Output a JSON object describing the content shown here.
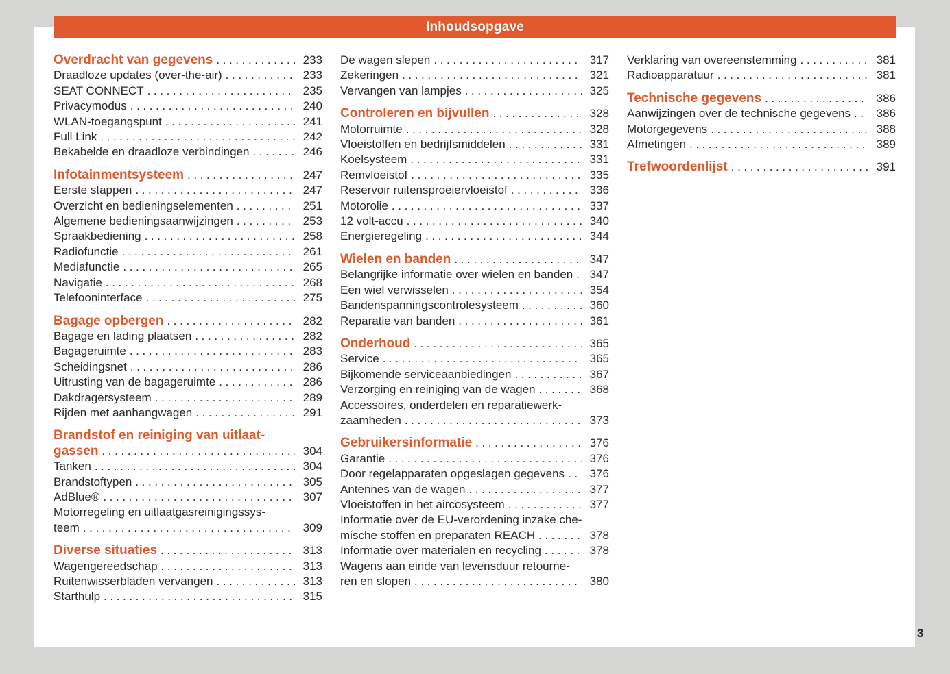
{
  "header": {
    "title": "Inhoudsopgave"
  },
  "page_number": "3",
  "colors": {
    "accent": "#e05a2e",
    "page_background": "#ffffff",
    "canvas_background": "#d5d5d3",
    "text": "#2b2b2b"
  },
  "columns": [
    {
      "blocks": [
        {
          "heading": {
            "lines": [
              "Overdracht van gegevens"
            ],
            "page": "233"
          },
          "items": [
            {
              "lines": [
                "Draadloze updates (over-the-air)"
              ],
              "page": "233"
            },
            {
              "lines": [
                "SEAT CONNECT"
              ],
              "page": "235"
            },
            {
              "lines": [
                "Privacymodus"
              ],
              "page": "240"
            },
            {
              "lines": [
                "WLAN-toegangspunt"
              ],
              "page": "241"
            },
            {
              "lines": [
                "Full Link"
              ],
              "page": "242"
            },
            {
              "lines": [
                "Bekabelde en draadloze verbindingen"
              ],
              "page": "246"
            }
          ]
        },
        {
          "heading": {
            "lines": [
              "Infotainmentsysteem"
            ],
            "page": "247"
          },
          "items": [
            {
              "lines": [
                "Eerste stappen"
              ],
              "page": "247"
            },
            {
              "lines": [
                "Overzicht en bedieningselementen"
              ],
              "page": "251"
            },
            {
              "lines": [
                "Algemene bedieningsaanwijzingen"
              ],
              "page": "253"
            },
            {
              "lines": [
                "Spraakbediening"
              ],
              "page": "258"
            },
            {
              "lines": [
                "Radiofunctie"
              ],
              "page": "261"
            },
            {
              "lines": [
                "Mediafunctie"
              ],
              "page": "265"
            },
            {
              "lines": [
                "Navigatie"
              ],
              "page": "268"
            },
            {
              "lines": [
                "Telefooninterface"
              ],
              "page": "275"
            }
          ]
        },
        {
          "heading": {
            "lines": [
              "Bagage opbergen"
            ],
            "page": "282"
          },
          "items": [
            {
              "lines": [
                "Bagage en lading plaatsen"
              ],
              "page": "282"
            },
            {
              "lines": [
                "Bagageruimte"
              ],
              "page": "283"
            },
            {
              "lines": [
                "Scheidingsnet"
              ],
              "page": "286"
            },
            {
              "lines": [
                "Uitrusting van de bagageruimte"
              ],
              "page": "286"
            },
            {
              "lines": [
                "Dakdragersysteem"
              ],
              "page": "289"
            },
            {
              "lines": [
                "Rijden met aanhangwagen"
              ],
              "page": "291"
            }
          ]
        },
        {
          "heading": {
            "lines": [
              "Brandstof en reiniging van uitlaat-",
              "gassen"
            ],
            "page": "304"
          },
          "items": [
            {
              "lines": [
                "Tanken"
              ],
              "page": "304"
            },
            {
              "lines": [
                "Brandstoftypen"
              ],
              "page": "305"
            },
            {
              "lines": [
                "AdBlue®"
              ],
              "page": "307"
            },
            {
              "lines": [
                "Motorregeling en uitlaatgasreinigingssys-",
                "teem"
              ],
              "page": "309"
            }
          ]
        },
        {
          "heading": {
            "lines": [
              "Diverse situaties"
            ],
            "page": "313"
          },
          "items": [
            {
              "lines": [
                "Wagengereedschap"
              ],
              "page": "313"
            },
            {
              "lines": [
                "Ruitenwisserbladen vervangen"
              ],
              "page": "313"
            },
            {
              "lines": [
                "Starthulp"
              ],
              "page": "315"
            }
          ]
        }
      ]
    },
    {
      "blocks": [
        {
          "items": [
            {
              "lines": [
                "De wagen slepen"
              ],
              "page": "317"
            },
            {
              "lines": [
                "Zekeringen"
              ],
              "page": "321"
            },
            {
              "lines": [
                "Vervangen van lampjes"
              ],
              "page": "325"
            }
          ]
        },
        {
          "heading": {
            "lines": [
              "Controleren en bijvullen"
            ],
            "page": "328"
          },
          "items": [
            {
              "lines": [
                "Motorruimte"
              ],
              "page": "328"
            },
            {
              "lines": [
                "Vloeistoffen en bedrijfsmiddelen"
              ],
              "page": "331"
            },
            {
              "lines": [
                "Koelsysteem"
              ],
              "page": "331"
            },
            {
              "lines": [
                "Remvloeistof"
              ],
              "page": "335"
            },
            {
              "lines": [
                "Reservoir ruitensproeiervloeistof"
              ],
              "page": "336"
            },
            {
              "lines": [
                "Motorolie"
              ],
              "page": "337"
            },
            {
              "lines": [
                "12 volt-accu"
              ],
              "page": "340"
            },
            {
              "lines": [
                "Energieregeling"
              ],
              "page": "344"
            }
          ]
        },
        {
          "heading": {
            "lines": [
              "Wielen en banden"
            ],
            "page": "347"
          },
          "items": [
            {
              "lines": [
                "Belangrijke informatie over wielen en banden"
              ],
              "page": "347"
            },
            {
              "lines": [
                "Een wiel verwisselen"
              ],
              "page": "354"
            },
            {
              "lines": [
                "Bandenspanningscontrolesysteem"
              ],
              "page": "360"
            },
            {
              "lines": [
                "Reparatie van banden"
              ],
              "page": "361"
            }
          ]
        },
        {
          "heading": {
            "lines": [
              "Onderhoud"
            ],
            "page": "365"
          },
          "items": [
            {
              "lines": [
                "Service"
              ],
              "page": "365"
            },
            {
              "lines": [
                "Bijkomende serviceaanbiedingen"
              ],
              "page": "367"
            },
            {
              "lines": [
                "Verzorging en reiniging van de wagen"
              ],
              "page": "368"
            },
            {
              "lines": [
                "Accessoires, onderdelen en reparatiewerk-",
                "zaamheden"
              ],
              "page": "373"
            }
          ]
        },
        {
          "heading": {
            "lines": [
              "Gebruikersinformatie"
            ],
            "page": "376"
          },
          "items": [
            {
              "lines": [
                "Garantie"
              ],
              "page": "376"
            },
            {
              "lines": [
                "Door regelapparaten opgeslagen gegevens"
              ],
              "page": "376"
            },
            {
              "lines": [
                "Antennes van de wagen"
              ],
              "page": "377"
            },
            {
              "lines": [
                "Vloeistoffen in het aircosysteem"
              ],
              "page": "377"
            },
            {
              "lines": [
                "Informatie over de EU-verordening inzake che-",
                "mische stoffen en preparaten REACH"
              ],
              "page": "378"
            },
            {
              "lines": [
                "Informatie over materialen en recycling"
              ],
              "page": "378"
            },
            {
              "lines": [
                "Wagens aan einde van levensduur retourne-",
                "ren en slopen"
              ],
              "page": "380"
            }
          ]
        }
      ]
    },
    {
      "blocks": [
        {
          "items": [
            {
              "lines": [
                "Verklaring van overeenstemming"
              ],
              "page": "381"
            },
            {
              "lines": [
                "Radioapparatuur"
              ],
              "page": "381"
            }
          ]
        },
        {
          "heading": {
            "lines": [
              "Technische gegevens"
            ],
            "page": "386"
          },
          "items": [
            {
              "lines": [
                "Aanwijzingen over de technische gegevens"
              ],
              "page": "386"
            },
            {
              "lines": [
                "Motorgegevens"
              ],
              "page": "388"
            },
            {
              "lines": [
                "Afmetingen"
              ],
              "page": "389"
            }
          ]
        },
        {
          "heading": {
            "lines": [
              "Trefwoordenlijst"
            ],
            "page": "391"
          },
          "items": []
        }
      ]
    }
  ]
}
